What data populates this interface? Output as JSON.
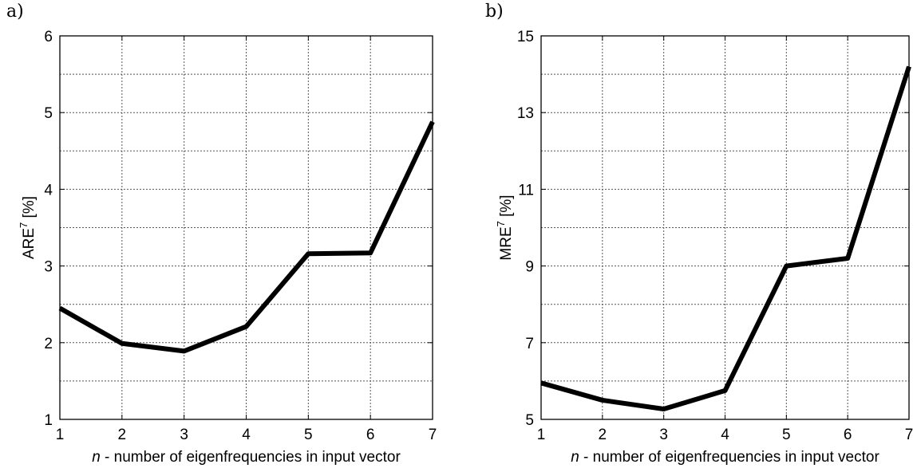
{
  "chart_data": [
    {
      "type": "line",
      "panel_label": "a)",
      "x": [
        1,
        2,
        3,
        4,
        5,
        6,
        7
      ],
      "series": [
        {
          "values": [
            2.45,
            1.99,
            1.89,
            2.21,
            3.16,
            3.17,
            4.88
          ]
        }
      ],
      "xlabel_var": "n",
      "xlabel_rest": " - number of eigenfrequencies in input vector",
      "ylabel_main": "ARE",
      "ylabel_sup": "7",
      "ylabel_unit": " [%]",
      "xlim": [
        1,
        7
      ],
      "ylim": [
        1,
        6
      ],
      "xticks": [
        1,
        2,
        3,
        4,
        5,
        6,
        7
      ],
      "yticks": [
        1,
        2,
        3,
        4,
        5,
        6
      ],
      "grid": true,
      "line_color": "#000000"
    },
    {
      "type": "line",
      "panel_label": "b)",
      "x": [
        1,
        2,
        3,
        4,
        5,
        6,
        7
      ],
      "series": [
        {
          "values": [
            5.95,
            5.5,
            5.27,
            5.75,
            9.0,
            9.2,
            14.2
          ]
        }
      ],
      "xlabel_var": "n",
      "xlabel_rest": " - number of eigenfrequencies in input vector",
      "ylabel_main": "MRE",
      "ylabel_sup": "7",
      "ylabel_unit": " [%]",
      "xlim": [
        1,
        7
      ],
      "ylim": [
        5,
        15
      ],
      "xticks": [
        1,
        2,
        3,
        4,
        5,
        6,
        7
      ],
      "yticks": [
        5,
        7,
        9,
        11,
        13,
        15
      ],
      "grid": true,
      "line_color": "#000000"
    }
  ]
}
